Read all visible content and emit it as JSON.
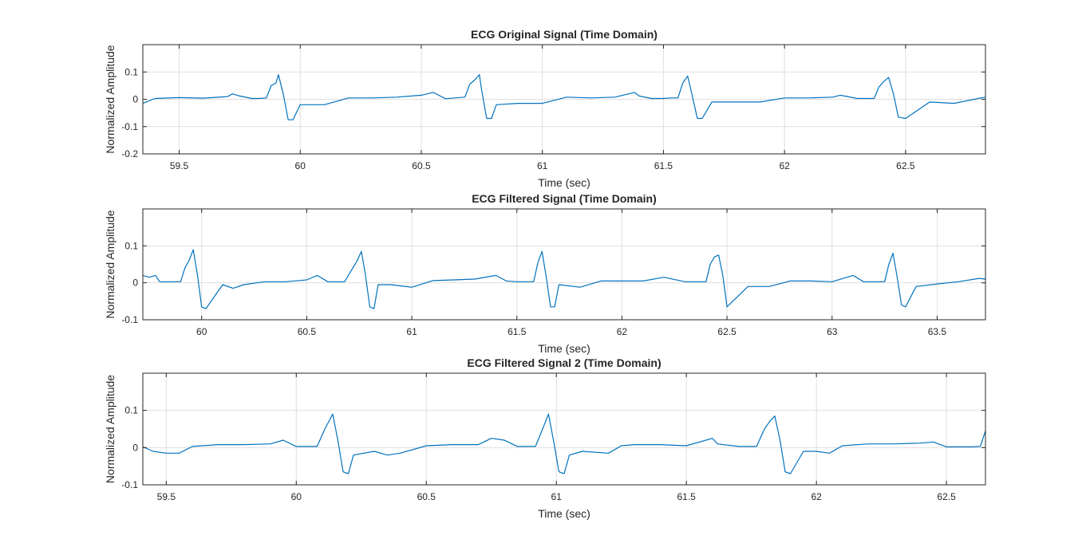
{
  "chart_data": [
    {
      "type": "line",
      "title": "ECG Original Signal (Time Domain)",
      "xlabel": "Time (sec)",
      "ylabel": "Normalized Amplitude",
      "xlim": [
        59.35,
        62.83
      ],
      "ylim": [
        -0.2,
        0.2
      ],
      "xticks": [
        59.5,
        60,
        60.5,
        61,
        61.5,
        62,
        62.5
      ],
      "xtick_labels": [
        "59.5",
        "60",
        "60.5",
        "61",
        "61.5",
        "62",
        "62.5"
      ],
      "yticks": [
        -0.2,
        -0.1,
        0,
        0.1
      ],
      "ytick_labels": [
        "-0.2",
        "-0.1",
        "0",
        "0.1"
      ],
      "grid": true,
      "color": "#0072bd",
      "beats": [
        59.91,
        60.745,
        61.595,
        62.43
      ],
      "x": [
        59.35,
        59.4,
        59.5,
        59.6,
        59.7,
        59.72,
        59.75,
        59.8,
        59.83,
        59.86,
        59.88,
        59.9,
        59.91,
        59.93,
        59.95,
        59.97,
        60.0,
        60.1,
        60.2,
        60.3,
        60.4,
        60.5,
        60.55,
        60.6,
        60.68,
        60.7,
        60.72,
        60.74,
        60.75,
        60.77,
        60.79,
        60.81,
        60.9,
        61.0,
        61.1,
        61.2,
        61.3,
        61.38,
        61.4,
        61.45,
        61.5,
        61.53,
        61.56,
        61.58,
        61.6,
        61.62,
        61.64,
        61.66,
        61.7,
        61.8,
        61.9,
        62.0,
        62.1,
        62.2,
        62.23,
        62.3,
        62.37,
        62.39,
        62.41,
        62.43,
        62.45,
        62.47,
        62.5,
        62.6,
        62.7,
        62.8,
        62.83
      ],
      "y": [
        -0.015,
        0.003,
        0.006,
        0.004,
        0.01,
        0.02,
        0.012,
        0.003,
        0.003,
        0.005,
        0.05,
        0.06,
        0.09,
        0.02,
        -0.075,
        -0.075,
        -0.02,
        -0.02,
        0.005,
        0.005,
        0.008,
        0.015,
        0.025,
        0.002,
        0.008,
        0.055,
        0.07,
        0.09,
        0.03,
        -0.07,
        -0.07,
        -0.02,
        -0.015,
        -0.015,
        0.008,
        0.005,
        0.008,
        0.025,
        0.012,
        0.003,
        0.003,
        0.005,
        0.005,
        0.06,
        0.085,
        0.01,
        -0.07,
        -0.07,
        -0.01,
        -0.01,
        -0.01,
        0.005,
        0.005,
        0.008,
        0.015,
        0.003,
        0.003,
        0.045,
        0.065,
        0.08,
        0.02,
        -0.065,
        -0.07,
        -0.01,
        -0.015,
        0.003,
        0.008
      ]
    },
    {
      "type": "line",
      "title": "ECG Filtered Signal (Time Domain)",
      "xlabel": "Time (sec)",
      "ylabel": "Normalized Amplitude",
      "xlim": [
        59.72,
        63.73
      ],
      "ylim": [
        -0.1,
        0.2
      ],
      "xticks": [
        60,
        60.5,
        61,
        61.5,
        62,
        62.5,
        63,
        63.5
      ],
      "xtick_labels": [
        "60",
        "60.5",
        "61",
        "61.5",
        "62",
        "62.5",
        "63",
        "63.5"
      ],
      "yticks": [
        -0.1,
        0,
        0.1
      ],
      "ytick_labels": [
        "-0.1",
        "0",
        "0.1"
      ],
      "grid": true,
      "color": "#0072bd",
      "x": [
        59.72,
        59.75,
        59.78,
        59.8,
        59.85,
        59.9,
        59.92,
        59.94,
        59.96,
        59.98,
        60.0,
        60.02,
        60.1,
        60.15,
        60.2,
        60.3,
        60.4,
        60.5,
        60.55,
        60.6,
        60.68,
        60.74,
        60.76,
        60.78,
        60.8,
        60.82,
        60.84,
        60.9,
        61.0,
        61.1,
        61.2,
        61.3,
        61.4,
        61.45,
        61.5,
        61.55,
        61.58,
        61.6,
        61.62,
        61.64,
        61.66,
        61.68,
        61.7,
        61.8,
        61.9,
        62.0,
        62.1,
        62.2,
        62.3,
        62.4,
        62.42,
        62.44,
        62.46,
        62.48,
        62.5,
        62.6,
        62.7,
        62.8,
        62.9,
        63.0,
        63.1,
        63.15,
        63.2,
        63.25,
        63.27,
        63.29,
        63.31,
        63.33,
        63.35,
        63.4,
        63.5,
        63.6,
        63.7,
        63.73
      ],
      "y": [
        0.02,
        0.015,
        0.02,
        0.003,
        0.003,
        0.003,
        0.04,
        0.06,
        0.09,
        0.02,
        -0.065,
        -0.07,
        -0.005,
        -0.015,
        -0.005,
        0.003,
        0.003,
        0.008,
        0.02,
        0.003,
        0.003,
        0.06,
        0.085,
        0.02,
        -0.065,
        -0.07,
        -0.005,
        -0.005,
        -0.012,
        0.006,
        0.008,
        0.01,
        0.02,
        0.005,
        0.003,
        0.003,
        0.003,
        0.055,
        0.085,
        0.015,
        -0.065,
        -0.065,
        -0.005,
        -0.012,
        0.005,
        0.005,
        0.005,
        0.015,
        0.003,
        0.003,
        0.05,
        0.07,
        0.075,
        0.02,
        -0.065,
        -0.01,
        -0.01,
        0.005,
        0.005,
        0.003,
        0.02,
        0.003,
        0.003,
        0.003,
        0.05,
        0.08,
        0.015,
        -0.06,
        -0.065,
        -0.01,
        -0.003,
        0.003,
        0.012,
        0.01
      ]
    },
    {
      "type": "line",
      "title": "ECG Filtered Signal 2 (Time Domain)",
      "xlabel": "Time (sec)",
      "ylabel": "Normalized Amplitude",
      "xlim": [
        59.41,
        62.65
      ],
      "ylim": [
        -0.1,
        0.2
      ],
      "xticks": [
        59.5,
        60,
        60.5,
        61,
        61.5,
        62,
        62.5
      ],
      "xtick_labels": [
        "59.5",
        "60",
        "60.5",
        "61",
        "61.5",
        "62",
        "62.5"
      ],
      "yticks": [
        -0.1,
        0,
        0.1
      ],
      "ytick_labels": [
        "-0.1",
        "0",
        "0.1"
      ],
      "grid": true,
      "color": "#0072bd",
      "x": [
        59.41,
        59.45,
        59.5,
        59.55,
        59.6,
        59.7,
        59.8,
        59.9,
        59.95,
        60.0,
        60.05,
        60.08,
        60.11,
        60.14,
        60.16,
        60.18,
        60.2,
        60.22,
        60.3,
        60.35,
        60.4,
        60.5,
        60.6,
        60.7,
        60.75,
        60.8,
        60.85,
        60.92,
        60.95,
        60.97,
        60.99,
        61.01,
        61.03,
        61.05,
        61.1,
        61.2,
        61.25,
        61.3,
        61.4,
        61.5,
        61.6,
        61.62,
        61.7,
        61.77,
        61.8,
        61.82,
        61.84,
        61.86,
        61.88,
        61.9,
        61.95,
        62.0,
        62.05,
        62.1,
        62.2,
        62.3,
        62.4,
        62.45,
        62.5,
        62.6,
        62.63,
        62.65
      ],
      "y": [
        0.002,
        -0.01,
        -0.015,
        -0.015,
        0.003,
        0.008,
        0.008,
        0.01,
        0.02,
        0.003,
        0.003,
        0.003,
        0.05,
        0.09,
        0.02,
        -0.065,
        -0.07,
        -0.02,
        -0.01,
        -0.02,
        -0.015,
        0.005,
        0.008,
        0.008,
        0.025,
        0.02,
        0.003,
        0.003,
        0.055,
        0.09,
        0.015,
        -0.065,
        -0.07,
        -0.02,
        -0.01,
        -0.015,
        0.005,
        0.008,
        0.008,
        0.005,
        0.025,
        0.01,
        0.003,
        0.003,
        0.05,
        0.07,
        0.085,
        0.02,
        -0.065,
        -0.07,
        -0.01,
        -0.01,
        -0.015,
        0.005,
        0.01,
        0.01,
        0.012,
        0.015,
        0.002,
        0.002,
        0.003,
        0.045
      ]
    }
  ]
}
